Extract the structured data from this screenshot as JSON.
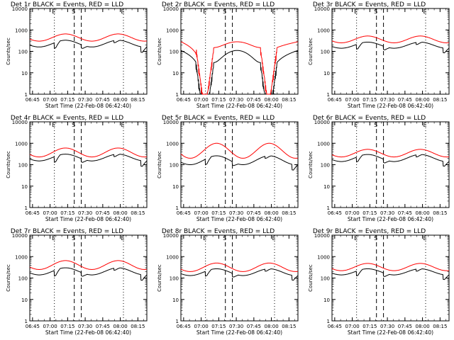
{
  "figure": {
    "start_time_label": "Start Time (22-Feb-08 06:42:40)",
    "ylabel": "Counts/sec",
    "x_ticks": [
      "06:45",
      "07:00",
      "07:15",
      "07:30",
      "07:45",
      "08:00",
      "08:15"
    ],
    "y_ticks": [
      "1",
      "10",
      "100",
      "1000",
      "10000"
    ],
    "markers": [
      {
        "label": "E",
        "style": "dotted",
        "t": 21
      },
      {
        "label": "S",
        "style": "dashed",
        "t": 38
      },
      {
        "label": "S",
        "style": "dashed",
        "t": 44
      },
      {
        "label": "E",
        "style": "dotted",
        "t": 80
      }
    ],
    "colors": {
      "events": "#000000",
      "lld": "#ff0000"
    }
  },
  "chart_data": [
    {
      "type": "line",
      "title": "Det 1r BLACK = Events, RED = LLD",
      "xlabel": "Start Time (22-Feb-08 06:42:40)",
      "ylabel": "Counts/sec",
      "x_range_minutes": [
        0,
        100
      ],
      "ylim": [
        1,
        10000
      ],
      "yscale": "log",
      "series": [
        {
          "name": "Events",
          "color": "#000000",
          "profile": "normal",
          "min": 160,
          "peak": 330,
          "drops": [
            {
              "t": 21,
              "f": 0.55
            },
            {
              "t": 44,
              "f": 0.7
            },
            {
              "t": 72,
              "f": 0.8
            },
            {
              "t": 95,
              "f": 0.55
            }
          ]
        },
        {
          "name": "LLD",
          "color": "#ff0000",
          "profile": "normal",
          "min": 300,
          "peak": 650,
          "drops": []
        }
      ]
    },
    {
      "type": "line",
      "title": "Det 2r BLACK = Events, RED = LLD",
      "xlabel": "Start Time (22-Feb-08 06:42:40)",
      "ylabel": "Counts/sec",
      "x_range_minutes": [
        0,
        100
      ],
      "ylim": [
        1,
        10000
      ],
      "yscale": "log",
      "series": [
        {
          "name": "Events",
          "color": "#000000",
          "profile": "saa",
          "min": 30,
          "peak": 110,
          "drops": []
        },
        {
          "name": "LLD",
          "color": "#ff0000",
          "profile": "saa",
          "min": 150,
          "peak": 280,
          "drops": []
        }
      ]
    },
    {
      "type": "line",
      "title": "Det 3r BLACK = Events, RED = LLD",
      "xlabel": "Start Time (22-Feb-08 06:42:40)",
      "ylabel": "Counts/sec",
      "x_range_minutes": [
        0,
        100
      ],
      "ylim": [
        1,
        10000
      ],
      "yscale": "log",
      "series": [
        {
          "name": "Events",
          "color": "#000000",
          "profile": "normal",
          "min": 140,
          "peak": 270,
          "drops": [
            {
              "t": 21,
              "f": 0.6
            },
            {
              "t": 44,
              "f": 0.7
            },
            {
              "t": 72,
              "f": 0.8
            },
            {
              "t": 95,
              "f": 0.6
            }
          ]
        },
        {
          "name": "LLD",
          "color": "#ff0000",
          "profile": "normal",
          "min": 250,
          "peak": 520,
          "drops": []
        }
      ]
    },
    {
      "type": "line",
      "title": "Det 4r BLACK = Events, RED = LLD",
      "xlabel": "Start Time (22-Feb-08 06:42:40)",
      "ylabel": "Counts/sec",
      "x_range_minutes": [
        0,
        100
      ],
      "ylim": [
        1,
        10000
      ],
      "yscale": "log",
      "series": [
        {
          "name": "Events",
          "color": "#000000",
          "profile": "normal",
          "min": 150,
          "peak": 310,
          "drops": [
            {
              "t": 21,
              "f": 0.55
            },
            {
              "t": 44,
              "f": 0.7
            },
            {
              "t": 72,
              "f": 0.8
            },
            {
              "t": 95,
              "f": 0.55
            }
          ]
        },
        {
          "name": "LLD",
          "color": "#ff0000",
          "profile": "normal",
          "min": 230,
          "peak": 600,
          "drops": []
        }
      ]
    },
    {
      "type": "line",
      "title": "Det 5r BLACK = Events, RED = LLD",
      "xlabel": "Start Time (22-Feb-08 06:42:40)",
      "ylabel": "Counts/sec",
      "x_range_minutes": [
        0,
        100
      ],
      "ylim": [
        1,
        10000
      ],
      "yscale": "log",
      "series": [
        {
          "name": "Events",
          "color": "#000000",
          "profile": "normal",
          "min": 100,
          "peak": 260,
          "drops": [
            {
              "t": 21,
              "f": 0.55
            },
            {
              "t": 44,
              "f": 0.7
            },
            {
              "t": 72,
              "f": 0.8
            },
            {
              "t": 95,
              "f": 0.55
            }
          ]
        },
        {
          "name": "LLD",
          "color": "#ff0000",
          "profile": "normal",
          "min": 200,
          "peak": 1000,
          "drops": []
        }
      ]
    },
    {
      "type": "line",
      "title": "Det 6r BLACK = Events, RED = LLD",
      "xlabel": "Start Time (22-Feb-08 06:42:40)",
      "ylabel": "Counts/sec",
      "x_range_minutes": [
        0,
        100
      ],
      "ylim": [
        1,
        10000
      ],
      "yscale": "log",
      "series": [
        {
          "name": "Events",
          "color": "#000000",
          "profile": "normal",
          "min": 140,
          "peak": 300,
          "drops": [
            {
              "t": 21,
              "f": 0.6
            },
            {
              "t": 44,
              "f": 0.7
            },
            {
              "t": 72,
              "f": 0.8
            },
            {
              "t": 95,
              "f": 0.6
            }
          ]
        },
        {
          "name": "LLD",
          "color": "#ff0000",
          "profile": "normal",
          "min": 230,
          "peak": 520,
          "drops": []
        }
      ]
    },
    {
      "type": "line",
      "title": "Det 7r BLACK = Events, RED = LLD",
      "xlabel": "Start Time (22-Feb-08 06:42:40)",
      "ylabel": "Counts/sec",
      "x_range_minutes": [
        0,
        100
      ],
      "ylim": [
        1,
        10000
      ],
      "yscale": "log",
      "series": [
        {
          "name": "Events",
          "color": "#000000",
          "profile": "normal",
          "min": 140,
          "peak": 300,
          "drops": [
            {
              "t": 21,
              "f": 0.55
            },
            {
              "t": 44,
              "f": 0.7
            },
            {
              "t": 72,
              "f": 0.8
            },
            {
              "t": 95,
              "f": 0.55
            }
          ]
        },
        {
          "name": "LLD",
          "color": "#ff0000",
          "profile": "normal",
          "min": 250,
          "peak": 650,
          "drops": []
        }
      ]
    },
    {
      "type": "line",
      "title": "Det 8r BLACK = Events, RED = LLD",
      "xlabel": "Start Time (22-Feb-08 06:42:40)",
      "ylabel": "Counts/sec",
      "x_range_minutes": [
        0,
        100
      ],
      "ylim": [
        1,
        10000
      ],
      "yscale": "log",
      "series": [
        {
          "name": "Events",
          "color": "#000000",
          "profile": "normal",
          "min": 130,
          "peak": 270,
          "drops": [
            {
              "t": 21,
              "f": 0.6
            },
            {
              "t": 44,
              "f": 0.7
            },
            {
              "t": 72,
              "f": 0.8
            },
            {
              "t": 95,
              "f": 0.6
            }
          ]
        },
        {
          "name": "LLD",
          "color": "#ff0000",
          "profile": "normal",
          "min": 200,
          "peak": 500,
          "drops": []
        }
      ]
    },
    {
      "type": "line",
      "title": "Det 9r BLACK = Events, RED = LLD",
      "xlabel": "Start Time (22-Feb-08 06:42:40)",
      "ylabel": "Counts/sec",
      "x_range_minutes": [
        0,
        100
      ],
      "ylim": [
        1,
        10000
      ],
      "yscale": "log",
      "series": [
        {
          "name": "Events",
          "color": "#000000",
          "profile": "normal",
          "min": 140,
          "peak": 270,
          "drops": [
            {
              "t": 21,
              "f": 0.6
            },
            {
              "t": 44,
              "f": 0.7
            },
            {
              "t": 72,
              "f": 0.8
            },
            {
              "t": 95,
              "f": 0.6
            }
          ]
        },
        {
          "name": "LLD",
          "color": "#ff0000",
          "profile": "normal",
          "min": 220,
          "peak": 480,
          "drops": []
        }
      ]
    }
  ]
}
